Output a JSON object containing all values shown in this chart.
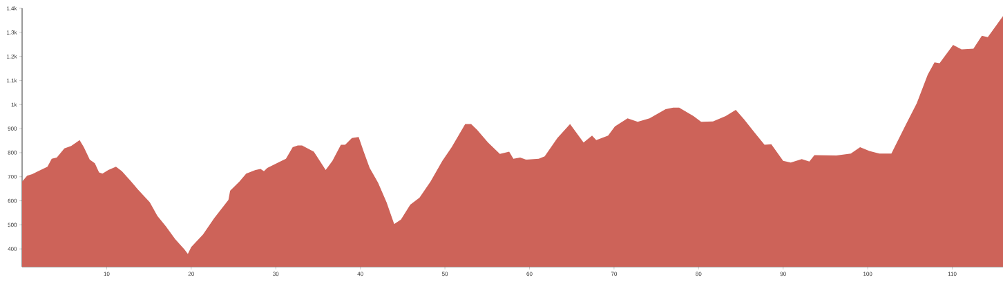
{
  "chart_data": {
    "type": "area",
    "color": "#cd6359",
    "x": [
      0.0,
      0.6,
      1.2,
      1.9,
      3.0,
      3.5,
      4.1,
      5.0,
      5.8,
      6.6,
      6.8,
      7.3,
      8.0,
      8.6,
      9.1,
      9.5,
      10.2,
      11.1,
      11.8,
      12.9,
      13.7,
      15.1,
      16.0,
      17.0,
      18.1,
      19.2,
      19.6,
      20.0,
      21.4,
      22.7,
      24.4,
      24.6,
      25.7,
      26.5,
      27.6,
      28.2,
      28.6,
      29.0,
      30.4,
      31.2,
      32.0,
      32.6,
      33.1,
      34.5,
      35.9,
      36.7,
      37.7,
      38.2,
      39.0,
      39.8,
      40.4,
      41.1,
      42.1,
      43.1,
      44.0,
      44.8,
      45.9,
      47.0,
      48.3,
      49.7,
      50.8,
      52.4,
      53.1,
      53.8,
      55.1,
      56.5,
      57.6,
      58.1,
      58.9,
      59.6,
      61.1,
      61.8,
      63.3,
      64.8,
      66.4,
      67.4,
      67.9,
      69.3,
      70.1,
      71.6,
      72.8,
      74.2,
      76.1,
      77.0,
      77.7,
      79.4,
      80.3,
      81.7,
      83.2,
      84.4,
      85.4,
      86.7,
      87.8,
      88.6,
      90.0,
      90.9,
      92.2,
      93.1,
      93.7,
      96.3,
      98.0,
      99.1,
      100.2,
      101.4,
      102.8,
      104.4,
      105.8,
      107.1,
      107.9,
      108.5,
      110.1,
      111.1,
      112.5,
      113.5,
      114.2,
      116.0
    ],
    "values": [
      680,
      704,
      711,
      723,
      742,
      775,
      780,
      818,
      828,
      847,
      852,
      823,
      771,
      756,
      718,
      713,
      728,
      742,
      723,
      680,
      647,
      594,
      537,
      494,
      441,
      398,
      379,
      408,
      460,
      527,
      604,
      642,
      680,
      713,
      728,
      732,
      723,
      737,
      761,
      775,
      823,
      830,
      830,
      804,
      728,
      766,
      833,
      833,
      861,
      865,
      804,
      737,
      675,
      594,
      503,
      522,
      584,
      613,
      680,
      766,
      823,
      919,
      919,
      895,
      842,
      795,
      804,
      775,
      780,
      771,
      775,
      785,
      861,
      919,
      842,
      871,
      852,
      871,
      909,
      943,
      928,
      943,
      981,
      987,
      987,
      952,
      928,
      930,
      952,
      978,
      938,
      880,
      833,
      835,
      766,
      759,
      773,
      763,
      790,
      788,
      796,
      823,
      807,
      796,
      796,
      909,
      1005,
      1124,
      1175,
      1172,
      1248,
      1229,
      1232,
      1286,
      1280,
      1368
    ],
    "xlim": [
      0,
      116.0
    ],
    "ylim": [
      326,
      1400
    ],
    "xticks": [
      10,
      20,
      30,
      40,
      50,
      60,
      70,
      80,
      90,
      100,
      110
    ],
    "yticks": [
      400,
      500,
      600,
      700,
      800,
      900,
      {
        "value": 1000,
        "label": "1k"
      },
      {
        "value": 1100,
        "label": "1.1k"
      },
      {
        "value": 1200,
        "label": "1.2k"
      },
      {
        "value": 1300,
        "label": "1.3k"
      },
      {
        "value": 1400,
        "label": "1.4k"
      }
    ]
  }
}
